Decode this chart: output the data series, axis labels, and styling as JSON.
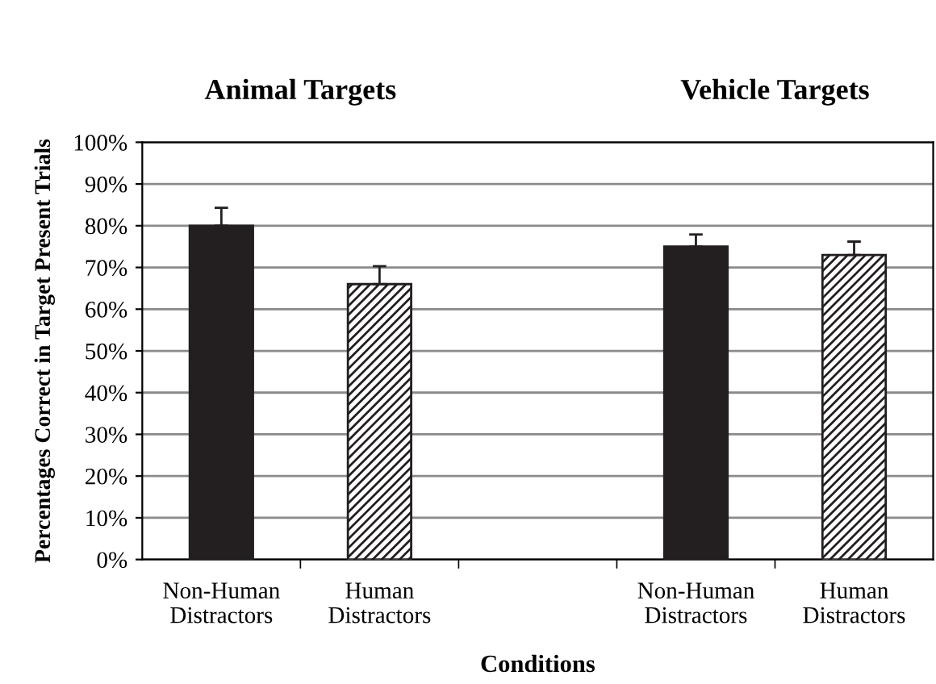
{
  "chart_data": {
    "type": "bar",
    "ylabel": "Percentages Correct in Target Present Trials",
    "xlabel": "Conditions",
    "annotations": [
      "Animal Targets",
      "Vehicle Targets"
    ],
    "categories": [
      "Non-Human\nDistractors",
      "Human\nDistractors",
      null,
      "Non-Human\nDistractors",
      "Human\nDistractors"
    ],
    "series": [
      {
        "color": "#231f20",
        "values": [
          80,
          null,
          null,
          75,
          null
        ],
        "errors": [
          4.3,
          null,
          null,
          2.9,
          null
        ]
      },
      {
        "color": "#231f20",
        "values": [
          null,
          66,
          null,
          null,
          73
        ],
        "errors": [
          null,
          4.3,
          null,
          null,
          3.2
        ]
      }
    ],
    "ylim": [
      0,
      100
    ],
    "yticks": [
      {
        "value": 0,
        "label": "0%"
      },
      {
        "value": 10,
        "label": "10%"
      },
      {
        "value": 20,
        "label": "20%"
      },
      {
        "value": 30,
        "label": "30%"
      },
      {
        "value": 40,
        "label": "40%"
      },
      {
        "value": 50,
        "label": "50%"
      },
      {
        "value": 60,
        "label": "60%"
      },
      {
        "value": 70,
        "label": "70%"
      },
      {
        "value": 80,
        "label": "80%"
      },
      {
        "value": 90,
        "label": "90%"
      },
      {
        "value": 100,
        "label": "100%"
      }
    ],
    "grid": "y"
  }
}
